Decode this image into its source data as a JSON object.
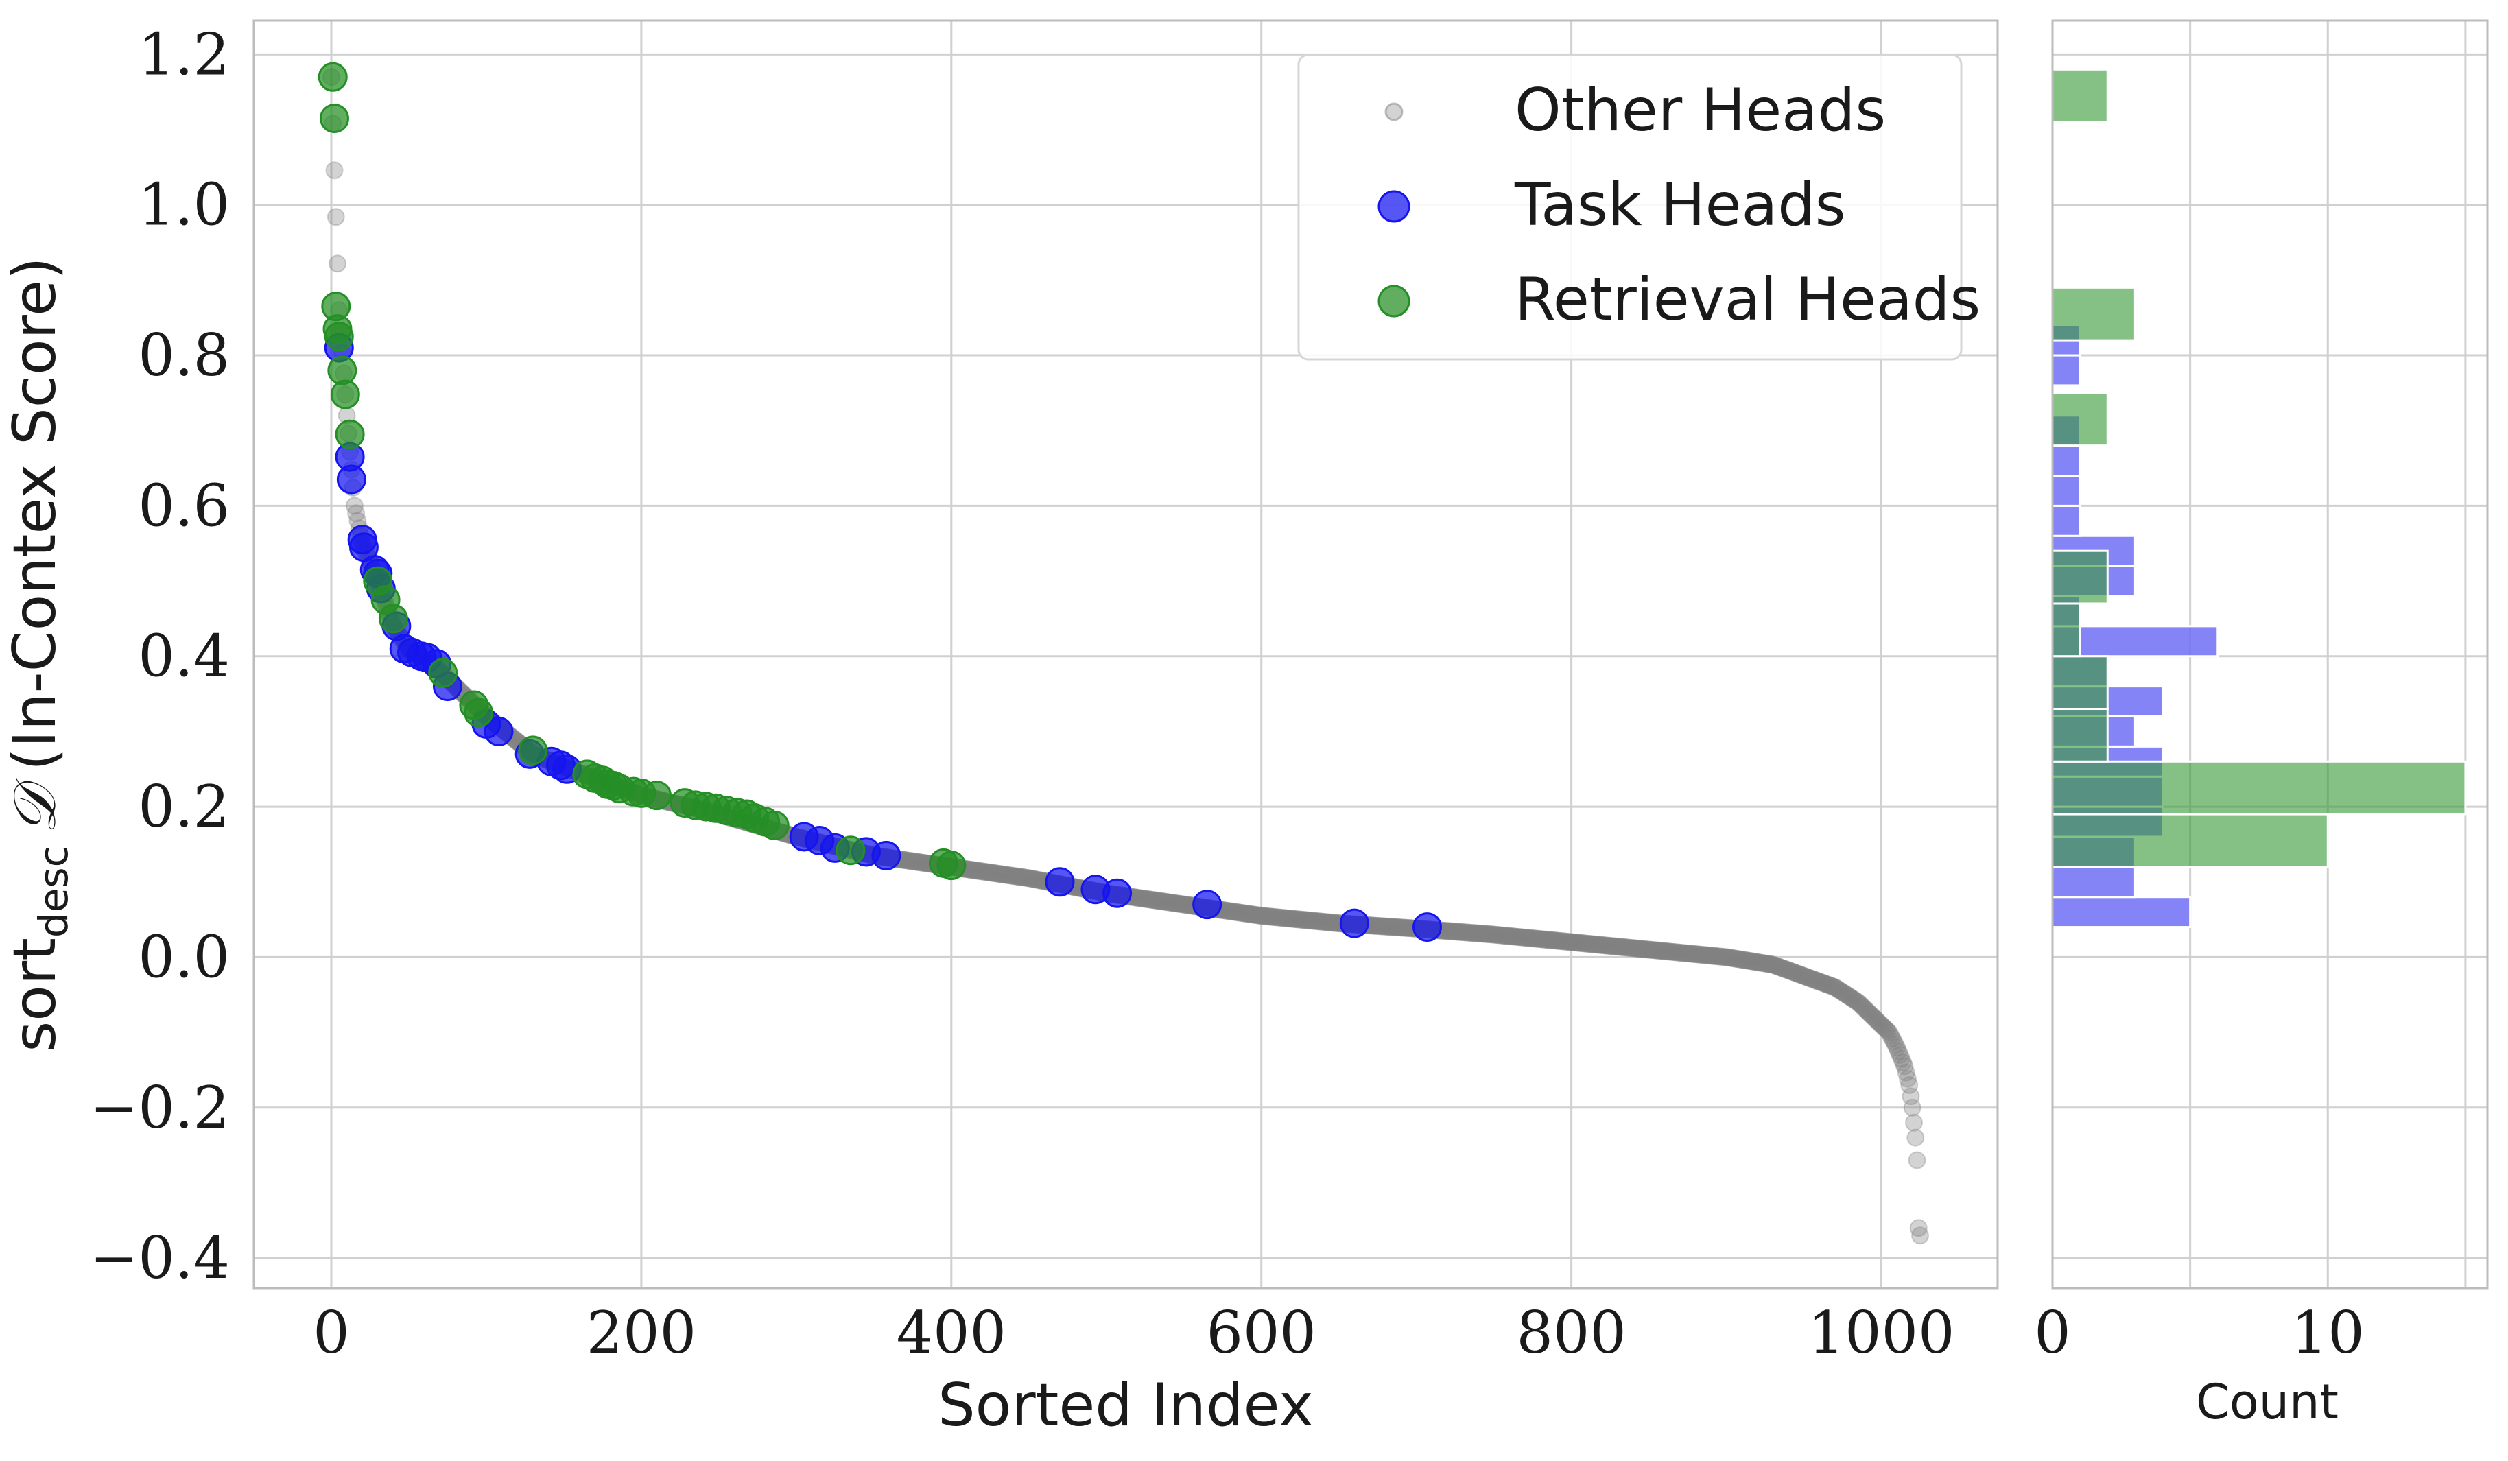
{
  "chart_data": [
    {
      "type": "scatter",
      "xlabel": "Sorted Index",
      "ylabel_main": "sort",
      "ylabel_sub": "desc",
      "ylabel_symbol": "𝒟",
      "ylabel_rest": "(In-Contex Score)",
      "xlim": [
        -50,
        1075
      ],
      "ylim": [
        -0.44,
        1.245
      ],
      "xticks": [
        0,
        200,
        400,
        600,
        800,
        1000
      ],
      "xtick_labels": [
        "0",
        "200",
        "400",
        "600",
        "800",
        "1000"
      ],
      "yticks": [
        -0.4,
        -0.2,
        0.0,
        0.2,
        0.4,
        0.6,
        0.8,
        1.0,
        1.2
      ],
      "ytick_labels": [
        "−0.4",
        "−0.2",
        "0.0",
        "0.2",
        "0.4",
        "0.6",
        "0.8",
        "1.0",
        "1.2"
      ],
      "grid": true,
      "legend_position": "top-right",
      "colors": {
        "other": "#808080",
        "task": "#1515f0",
        "retrieval": "#248f24",
        "grid": "#d0d0d0",
        "axis": "#bcbcbc"
      },
      "series": [
        {
          "name": "Other Heads",
          "curve_knots": [
            [
              0,
              1.17
            ],
            [
              5,
              0.86
            ],
            [
              10,
              0.72
            ],
            [
              15,
              0.6
            ],
            [
              20,
              0.55
            ],
            [
              30,
              0.5
            ],
            [
              40,
              0.44
            ],
            [
              50,
              0.41
            ],
            [
              70,
              0.38
            ],
            [
              100,
              0.32
            ],
            [
              130,
              0.27
            ],
            [
              160,
              0.245
            ],
            [
              200,
              0.215
            ],
            [
              250,
              0.19
            ],
            [
              300,
              0.16
            ],
            [
              350,
              0.135
            ],
            [
              400,
              0.12
            ],
            [
              450,
              0.105
            ],
            [
              500,
              0.085
            ],
            [
              550,
              0.07
            ],
            [
              600,
              0.055
            ],
            [
              650,
              0.045
            ],
            [
              700,
              0.038
            ],
            [
              750,
              0.03
            ],
            [
              800,
              0.02
            ],
            [
              850,
              0.01
            ],
            [
              900,
              0.0
            ],
            [
              930,
              -0.01
            ],
            [
              950,
              -0.025
            ],
            [
              970,
              -0.04
            ],
            [
              985,
              -0.06
            ],
            [
              995,
              -0.08
            ],
            [
              1005,
              -0.1
            ],
            [
              1010,
              -0.12
            ],
            [
              1015,
              -0.145
            ],
            [
              1018,
              -0.17
            ],
            [
              1020,
              -0.2
            ],
            [
              1022,
              -0.24
            ],
            [
              1023,
              -0.27
            ],
            [
              1024,
              -0.36
            ],
            [
              1025,
              -0.37
            ]
          ],
          "n_points": 1026
        },
        {
          "name": "Task Heads",
          "points": [
            [
              5,
              0.81
            ],
            [
              12,
              0.665
            ],
            [
              13,
              0.635
            ],
            [
              20,
              0.555
            ],
            [
              21,
              0.545
            ],
            [
              28,
              0.515
            ],
            [
              30,
              0.51
            ],
            [
              32,
              0.49
            ],
            [
              42,
              0.44
            ],
            [
              47,
              0.41
            ],
            [
              52,
              0.405
            ],
            [
              58,
              0.4
            ],
            [
              62,
              0.398
            ],
            [
              68,
              0.39
            ],
            [
              75,
              0.36
            ],
            [
              100,
              0.31
            ],
            [
              108,
              0.3
            ],
            [
              128,
              0.27
            ],
            [
              142,
              0.26
            ],
            [
              148,
              0.255
            ],
            [
              152,
              0.25
            ],
            [
              305,
              0.16
            ],
            [
              315,
              0.155
            ],
            [
              325,
              0.145
            ],
            [
              345,
              0.14
            ],
            [
              358,
              0.135
            ],
            [
              470,
              0.1
            ],
            [
              493,
              0.09
            ],
            [
              507,
              0.085
            ],
            [
              565,
              0.07
            ],
            [
              660,
              0.045
            ],
            [
              707,
              0.04
            ]
          ]
        },
        {
          "name": "Retrieval Heads",
          "points": [
            [
              1,
              1.17
            ],
            [
              2,
              1.115
            ],
            [
              3,
              0.865
            ],
            [
              4,
              0.835
            ],
            [
              5,
              0.825
            ],
            [
              7,
              0.78
            ],
            [
              9,
              0.748
            ],
            [
              12,
              0.695
            ],
            [
              30,
              0.5
            ],
            [
              35,
              0.475
            ],
            [
              40,
              0.45
            ],
            [
              72,
              0.378
            ],
            [
              92,
              0.335
            ],
            [
              95,
              0.325
            ],
            [
              130,
              0.275
            ],
            [
              165,
              0.243
            ],
            [
              170,
              0.238
            ],
            [
              175,
              0.235
            ],
            [
              178,
              0.23
            ],
            [
              182,
              0.228
            ],
            [
              186,
              0.224
            ],
            [
              195,
              0.22
            ],
            [
              200,
              0.218
            ],
            [
              210,
              0.215
            ],
            [
              228,
              0.205
            ],
            [
              235,
              0.202
            ],
            [
              242,
              0.2
            ],
            [
              248,
              0.198
            ],
            [
              255,
              0.195
            ],
            [
              262,
              0.192
            ],
            [
              268,
              0.19
            ],
            [
              273,
              0.185
            ],
            [
              280,
              0.18
            ],
            [
              286,
              0.175
            ],
            [
              335,
              0.142
            ],
            [
              395,
              0.125
            ],
            [
              400,
              0.122
            ]
          ]
        }
      ]
    },
    {
      "type": "bar",
      "orientation": "horizontal",
      "xlabel": "Count",
      "xlim": [
        0,
        15.8
      ],
      "xticks": [
        0,
        10
      ],
      "xtick_labels": [
        "0",
        "10"
      ],
      "grid": true,
      "series": [
        {
          "name": "Task Heads",
          "bins": [
            [
              0.04,
              0.08,
              5
            ],
            [
              0.08,
              0.12,
              3
            ],
            [
              0.12,
              0.16,
              3
            ],
            [
              0.16,
              0.2,
              4
            ],
            [
              0.2,
              0.24,
              4
            ],
            [
              0.24,
              0.28,
              4
            ],
            [
              0.28,
              0.32,
              3
            ],
            [
              0.32,
              0.36,
              4
            ],
            [
              0.36,
              0.4,
              2
            ],
            [
              0.4,
              0.44,
              6
            ],
            [
              0.44,
              0.48,
              1
            ],
            [
              0.48,
              0.52,
              3
            ],
            [
              0.52,
              0.56,
              3
            ],
            [
              0.56,
              0.6,
              1
            ],
            [
              0.6,
              0.64,
              1
            ],
            [
              0.64,
              0.68,
              1
            ],
            [
              0.68,
              0.72,
              1
            ],
            [
              0.76,
              0.8,
              1
            ],
            [
              0.8,
              0.84,
              1
            ]
          ]
        },
        {
          "name": "Retrieval Heads",
          "bins": [
            [
              0.12,
              0.19,
              10
            ],
            [
              0.19,
              0.26,
              15
            ],
            [
              0.26,
              0.33,
              2
            ],
            [
              0.33,
              0.4,
              2
            ],
            [
              0.4,
              0.47,
              1
            ],
            [
              0.47,
              0.54,
              2
            ],
            [
              0.68,
              0.75,
              2
            ],
            [
              0.82,
              0.89,
              3
            ],
            [
              1.11,
              1.18,
              2
            ]
          ]
        }
      ]
    }
  ],
  "legend": {
    "items": [
      {
        "label": "Other Heads"
      },
      {
        "label": "Task Heads"
      },
      {
        "label": "Retrieval Heads"
      }
    ]
  }
}
